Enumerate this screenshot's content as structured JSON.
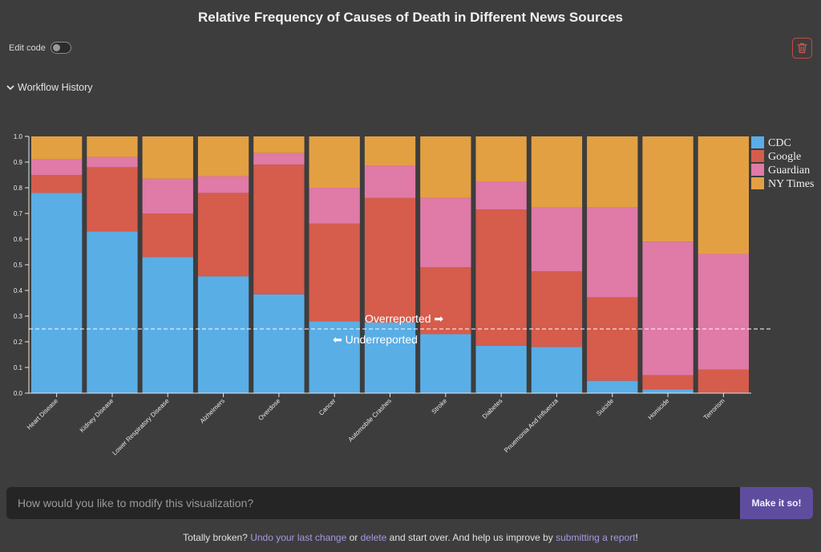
{
  "header": {
    "title": "Relative Frequency of Causes of Death in Different News Sources"
  },
  "controls": {
    "edit_code_label": "Edit code",
    "workflow_history_label": "Workflow History"
  },
  "prompt": {
    "placeholder": "How would you like to modify this visualization?",
    "submit_label": "Make it so!"
  },
  "footer": {
    "text1": "Totally broken? ",
    "undo_link": "Undo your last change",
    "text2": " or ",
    "delete_link": "delete",
    "text3": " and start over. And help us improve by ",
    "report_link": "submitting a report",
    "text4": "!"
  },
  "colors": {
    "CDC": "#5aaee6",
    "Google": "#d65c4c",
    "Guardian": "#e07aa6",
    "NY Times": "#e3a043",
    "accent": "#5e4d9f"
  },
  "chart_data": {
    "type": "bar",
    "stacked": true,
    "title": "Relative Frequency of Causes of Death in Different News Sources",
    "categories": [
      "Heart Disease",
      "Kidney Disease",
      "Lower Respiratory Disease",
      "Alzheimers",
      "Overdose",
      "Cancer",
      "Automobile Crashes",
      "Stroke",
      "Diabetes",
      "Pnuemonia And Influenza",
      "Suicide",
      "Homicide",
      "Terrorism"
    ],
    "series": [
      {
        "name": "CDC",
        "values": [
          0.78,
          0.63,
          0.53,
          0.455,
          0.385,
          0.28,
          0.275,
          0.23,
          0.185,
          0.18,
          0.048,
          0.015,
          0.002
        ]
      },
      {
        "name": "Google",
        "values": [
          0.07,
          0.25,
          0.17,
          0.325,
          0.505,
          0.38,
          0.485,
          0.26,
          0.53,
          0.295,
          0.325,
          0.055,
          0.09
        ]
      },
      {
        "name": "Guardian",
        "values": [
          0.06,
          0.04,
          0.135,
          0.065,
          0.045,
          0.14,
          0.125,
          0.27,
          0.11,
          0.25,
          0.35,
          0.52,
          0.45
        ]
      },
      {
        "name": "NY Times",
        "values": [
          0.09,
          0.08,
          0.165,
          0.155,
          0.065,
          0.2,
          0.115,
          0.24,
          0.175,
          0.275,
          0.277,
          0.41,
          0.458
        ]
      }
    ],
    "ylim": [
      0,
      1
    ],
    "yticks": [
      "0.0",
      "0.1",
      "0.2",
      "0.3",
      "0.4",
      "0.5",
      "0.6",
      "0.7",
      "0.8",
      "0.9",
      "1.0"
    ],
    "reference_line": {
      "value": 0.25,
      "label_above": "Overreported ➡",
      "label_below": "⬅ Underreported"
    },
    "legend": [
      "CDC",
      "Google",
      "Guardian",
      "NY Times"
    ],
    "legend_position": "top-right"
  }
}
